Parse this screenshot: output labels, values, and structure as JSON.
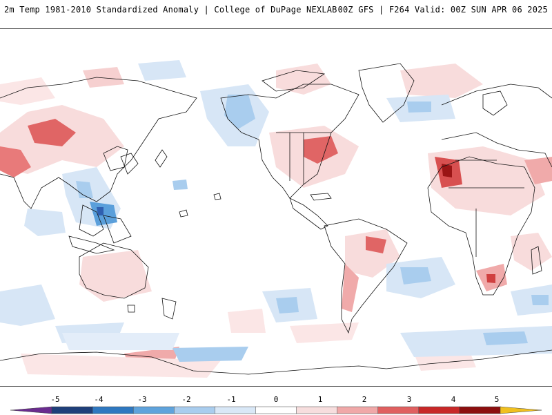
{
  "header": {
    "title": "2m Temp 1981-2010 Standardized Anomaly | College of DuPage NEXLAB",
    "valid": "00Z GFS | F264 Valid: 00Z SUN APR 06 2025"
  },
  "colorbar": {
    "ticks": [
      "-5",
      "-4",
      "-3",
      "-2",
      "-1",
      "0",
      "1",
      "2",
      "3",
      "4",
      "5"
    ],
    "colors": [
      "#6a2c8f",
      "#1f3f7a",
      "#2f78c0",
      "#5fa3dc",
      "#a9cdee",
      "#d9e8f7",
      "#ffffff",
      "#f7dede",
      "#f0a8a8",
      "#e06060",
      "#c82828",
      "#8c0f0f",
      "#f0c020"
    ]
  },
  "map": {
    "palette": {
      "warm1": "#f8dcdc",
      "warm2": "#f0aaaa",
      "warm3": "#e06565",
      "warm4": "#c42a2a",
      "cool1": "#d7e6f6",
      "cool2": "#a9cdee",
      "cool3": "#5a9fdb",
      "cool4": "#2f5fb0",
      "coast": "#111111"
    }
  }
}
